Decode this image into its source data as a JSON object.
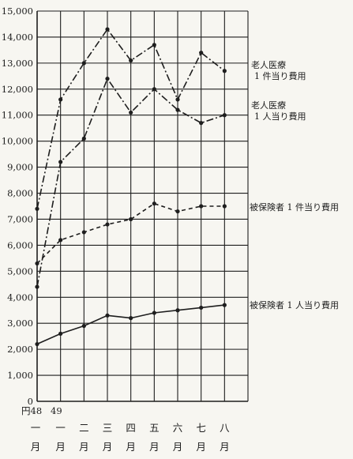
{
  "chart_data": {
    "type": "line",
    "title": "",
    "xlabel": "",
    "ylabel": "",
    "ylim": [
      0,
      15000
    ],
    "grid": true,
    "y_ticks": [
      "0",
      "1,000",
      "2,000",
      "3,000",
      "4,000",
      "5,000",
      "6,000",
      "7,000",
      "8,000",
      "9,000",
      "10,000",
      "11,000",
      "12,000",
      "13,000",
      "14,000",
      "15,000"
    ],
    "x_year_labels": [
      "円48",
      "49"
    ],
    "x_tick_labels": [
      "一",
      "一",
      "二",
      "三",
      "四",
      "五",
      "六",
      "七",
      "八"
    ],
    "x_month_labels": [
      "月",
      "月",
      "月",
      "月",
      "月",
      "月",
      "月",
      "月",
      "月"
    ],
    "categories": [
      "48年1月",
      "49年1月",
      "2月",
      "3月",
      "4月",
      "5月",
      "6月",
      "7月",
      "8月"
    ],
    "series": [
      {
        "name": "老人医療 1件当り費用",
        "label_lines": [
          "老人医療",
          "1 件当り費用"
        ],
        "style": "dash-dot",
        "values": [
          7400,
          11600,
          13000,
          14300,
          13100,
          13700,
          11600,
          13400,
          12700
        ]
      },
      {
        "name": "老人医療 1人当り費用",
        "label_lines": [
          "老人医療",
          "1 人当り費用"
        ],
        "style": "dash-dot",
        "values": [
          4400,
          9200,
          10100,
          12400,
          11100,
          12000,
          11200,
          10700,
          11000
        ]
      },
      {
        "name": "被保険者 1件当り費用",
        "label_lines": [
          "被保険者 1 件当り費用"
        ],
        "style": "dashed",
        "values": [
          5300,
          6200,
          6500,
          6800,
          7000,
          7600,
          7300,
          7500,
          7500
        ]
      },
      {
        "name": "被保険者 1人当り費用",
        "label_lines": [
          "被保険者 1 人当り費用"
        ],
        "style": "solid",
        "values": [
          2200,
          2600,
          2900,
          3300,
          3200,
          3400,
          3500,
          3600,
          3700
        ]
      }
    ]
  }
}
